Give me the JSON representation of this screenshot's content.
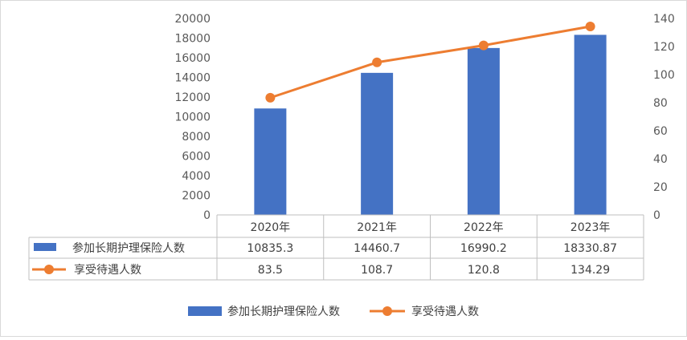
{
  "chart_data": {
    "type": "bar",
    "categories": [
      "2020年",
      "2021年",
      "2022年",
      "2023年"
    ],
    "series": [
      {
        "name": "参加长期护理保险人数",
        "type": "bar",
        "axis": "left",
        "color": "#4472C4",
        "values": [
          10835.3,
          14460.7,
          16990.2,
          18330.87
        ],
        "value_labels": [
          "10835.3",
          "14460.7",
          "16990.2",
          "18330.87"
        ]
      },
      {
        "name": "享受待遇人数",
        "type": "line",
        "axis": "right",
        "color": "#ED7D31",
        "values": [
          83.5,
          108.7,
          120.8,
          134.29
        ],
        "value_labels": [
          "83.5",
          "108.7",
          "120.8",
          "134.29"
        ]
      }
    ],
    "y_left": {
      "range": [
        0,
        20000
      ],
      "ticks": [
        "0",
        "2000",
        "4000",
        "6000",
        "8000",
        "10000",
        "12000",
        "14000",
        "16000",
        "18000",
        "20000"
      ]
    },
    "y_right": {
      "range": [
        0,
        140
      ],
      "ticks": [
        "0",
        "20",
        "40",
        "60",
        "80",
        "100",
        "120",
        "140"
      ]
    },
    "grid": false,
    "data_table": true,
    "legend_position": "bottom"
  }
}
